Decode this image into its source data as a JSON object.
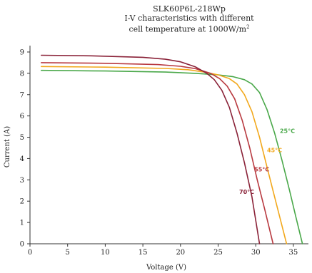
{
  "chart_data": {
    "type": "line",
    "title_lines": [
      "SLK60P6L-218Wp",
      "I-V characteristics with different",
      "cell temperature  at 1000W/m"
    ],
    "title_superscript": "2",
    "xlabel": "Voltage (V)",
    "ylabel": "Current (A)",
    "xlim": [
      0,
      37
    ],
    "ylim": [
      0,
      9.3
    ],
    "xticks": [
      0,
      5,
      10,
      15,
      20,
      25,
      30,
      35
    ],
    "yticks": [
      0,
      1,
      2,
      3,
      4,
      5,
      6,
      7,
      8,
      9
    ],
    "grid": false,
    "series": [
      {
        "name": "25°C",
        "color": "#4aa84a",
        "label_at": [
          34.2,
          5.2
        ],
        "points": [
          [
            1.5,
            8.14
          ],
          [
            10,
            8.11
          ],
          [
            18,
            8.06
          ],
          [
            22,
            8.0
          ],
          [
            25,
            7.93
          ],
          [
            27,
            7.84
          ],
          [
            28.5,
            7.7
          ],
          [
            29.5,
            7.5
          ],
          [
            30.5,
            7.1
          ],
          [
            31.5,
            6.3
          ],
          [
            32.5,
            5.2
          ],
          [
            33.5,
            3.9
          ],
          [
            34.5,
            2.5
          ],
          [
            35.3,
            1.3
          ],
          [
            36.2,
            0
          ]
        ]
      },
      {
        "name": "45°C",
        "color": "#f2a81c",
        "label_at": [
          32.5,
          4.3
        ],
        "points": [
          [
            1.5,
            8.32
          ],
          [
            10,
            8.29
          ],
          [
            18,
            8.23
          ],
          [
            21,
            8.17
          ],
          [
            23,
            8.07
          ],
          [
            25,
            7.93
          ],
          [
            26.5,
            7.75
          ],
          [
            27.5,
            7.5
          ],
          [
            28.5,
            7.0
          ],
          [
            29.5,
            6.2
          ],
          [
            30.5,
            5.0
          ],
          [
            31.5,
            3.6
          ],
          [
            32.5,
            2.2
          ],
          [
            33.3,
            1.1
          ],
          [
            34.1,
            0
          ]
        ]
      },
      {
        "name": "55°C",
        "color": "#b8393f",
        "label_at": [
          30.8,
          3.4
        ],
        "points": [
          [
            1.5,
            8.5
          ],
          [
            10,
            8.47
          ],
          [
            17,
            8.41
          ],
          [
            20,
            8.33
          ],
          [
            22,
            8.22
          ],
          [
            24,
            8.0
          ],
          [
            25.2,
            7.75
          ],
          [
            26.2,
            7.4
          ],
          [
            27.2,
            6.8
          ],
          [
            28.2,
            5.8
          ],
          [
            29.2,
            4.5
          ],
          [
            30.2,
            3.0
          ],
          [
            31.2,
            1.6
          ],
          [
            32.3,
            0
          ]
        ]
      },
      {
        "name": "70°C",
        "color": "#8a2238",
        "label_at": [
          28.8,
          2.35
        ],
        "points": [
          [
            1.5,
            8.85
          ],
          [
            8,
            8.82
          ],
          [
            15,
            8.75
          ],
          [
            18,
            8.66
          ],
          [
            20,
            8.54
          ],
          [
            22,
            8.3
          ],
          [
            23.5,
            8.0
          ],
          [
            24.5,
            7.7
          ],
          [
            25.5,
            7.2
          ],
          [
            26.5,
            6.4
          ],
          [
            27.5,
            5.2
          ],
          [
            28.5,
            3.8
          ],
          [
            29.5,
            2.2
          ],
          [
            30.5,
            0
          ]
        ]
      }
    ]
  }
}
